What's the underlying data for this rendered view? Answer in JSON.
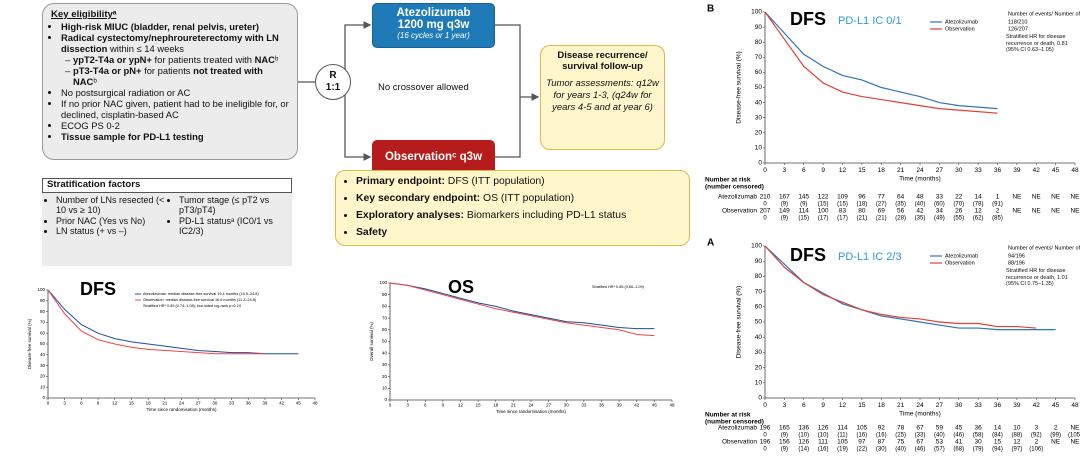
{
  "diagram": {
    "eligibility": {
      "title": "Key eligibilityᵃ",
      "items": [
        {
          "parts": [
            {
              "text": "High-risk MIUC (bladder, renal pelvis, ureter)",
              "bold": true
            }
          ]
        },
        {
          "parts": [
            {
              "text": "Radical cystectomy/nephroureterectomy with LN dissection",
              "bold": true
            },
            {
              "text": " within ≤ 14 weeks"
            }
          ]
        },
        {
          "sub": true,
          "parts": [
            {
              "text": "ypT2-T4a or ypN+",
              "bold": true
            },
            {
              "text": " for patients treated with "
            },
            {
              "text": "NAC",
              "bold": true
            },
            {
              "text": "ᵇ"
            }
          ]
        },
        {
          "sub": true,
          "parts": [
            {
              "text": "pT3-T4a or pN+",
              "bold": true
            },
            {
              "text": " for patients "
            },
            {
              "text": "not treated with NAC",
              "bold": true
            },
            {
              "text": "ᵇ"
            }
          ]
        },
        {
          "parts": [
            {
              "text": "No postsurgical radiation or AC"
            }
          ]
        },
        {
          "parts": [
            {
              "text": "If no prior NAC given, patient had to be ineligible for, or declined, cisplatin-based AC"
            }
          ]
        },
        {
          "parts": [
            {
              "text": "ECOG PS 0-2"
            }
          ]
        },
        {
          "parts": [
            {
              "text": "Tissue sample for PD-L1 testing",
              "bold": true
            }
          ]
        }
      ]
    },
    "stratification": {
      "title": "Stratification factors",
      "left": [
        "Number of LNs resected (< 10 vs ≥ 10)",
        "Prior NAC (Yes vs No)",
        "LN status (+ vs –)"
      ],
      "right": [
        "Tumor stage (≤ pT2 vs pT3/pT4)",
        "PD-L1 statusᵃ (IC0/1 vs IC2/3)"
      ]
    },
    "randomization": [
      "R",
      "1:1"
    ],
    "arm_a": {
      "name": "Atezolizumab",
      "dose": "1200 mg q3w",
      "note": "(16 cycles or 1 year)"
    },
    "arm_b": {
      "name": "Observationᶜ q3w"
    },
    "crossover": "No crossover allowed",
    "followup": {
      "title": "Disease recurrence/ survival follow-up",
      "body": "Tumor assessments: q12w for years 1-3, (q24w for years 4-5 and at year 6)"
    },
    "endpoints": [
      {
        "parts": [
          {
            "text": "Primary endpoint:",
            "bold": true
          },
          {
            "text": " DFS (ITT population)"
          }
        ]
      },
      {
        "parts": [
          {
            "text": "Key secondary endpoint:",
            "bold": true
          },
          {
            "text": " OS (ITT population)"
          }
        ]
      },
      {
        "parts": [
          {
            "text": "Exploratory analyses:",
            "bold": true
          },
          {
            "text": " Biomarkers including PD-L1 status"
          }
        ]
      },
      {
        "parts": [
          {
            "text": "Safety",
            "bold": true
          }
        ]
      }
    ]
  },
  "chart_data": [
    {
      "type": "line",
      "title": "DFS",
      "ylabel": "Disease-free survival (%)",
      "xlabel": "Time since randomisation (months)",
      "legend": [
        "Atezolizumab: median disease-free survival 19.4 months (15.9–24.8)",
        "Observation: median disease-free survival 16.6 months (11.2–24.8)",
        "Stratified HR* 0.89 (0.74–1.08); two-sided log-rank p=0.24"
      ],
      "x": [
        0,
        3,
        6,
        9,
        12,
        15,
        18,
        21,
        24,
        27,
        30,
        33,
        36,
        39,
        42,
        45
      ],
      "series": [
        {
          "name": "Atezolizumab",
          "color": "#1f4e9b",
          "values": [
            100,
            82,
            68,
            60,
            55,
            52,
            50,
            48,
            46,
            44,
            43,
            42,
            42,
            41,
            41,
            41
          ]
        },
        {
          "name": "Observation",
          "color": "#e8454a",
          "values": [
            100,
            78,
            62,
            54,
            50,
            47,
            45,
            44,
            43,
            42,
            41,
            41,
            41,
            41,
            null,
            null
          ]
        }
      ],
      "xlim": [
        0,
        48
      ],
      "ylim": [
        0,
        100
      ],
      "xticks": [
        0,
        3,
        6,
        9,
        12,
        15,
        18,
        21,
        24,
        27,
        30,
        33,
        36,
        39,
        42,
        45,
        48
      ],
      "yticks": [
        0,
        10,
        20,
        30,
        40,
        50,
        60,
        70,
        80,
        90,
        100
      ]
    },
    {
      "type": "line",
      "title": "OS",
      "ylabel": "Overall survival (%)",
      "xlabel": "Time since randomisation (months)",
      "legend": [
        "Stratified HR* 0.85 (0.66–1.09)"
      ],
      "x": [
        0,
        3,
        6,
        9,
        12,
        15,
        18,
        21,
        24,
        27,
        30,
        33,
        36,
        39,
        42,
        45
      ],
      "series": [
        {
          "name": "Atezolizumab",
          "color": "#1f4e9b",
          "values": [
            100,
            98,
            95,
            91,
            87,
            83,
            80,
            76,
            73,
            70,
            67,
            66,
            64,
            62,
            61,
            61
          ]
        },
        {
          "name": "Observation",
          "color": "#e8454a",
          "values": [
            100,
            98,
            94,
            90,
            86,
            82,
            78,
            75,
            72,
            69,
            66,
            64,
            62,
            60,
            56,
            55
          ]
        }
      ],
      "xlim": [
        0,
        48
      ],
      "ylim": [
        0,
        100
      ],
      "xticks": [
        0,
        3,
        6,
        9,
        12,
        15,
        18,
        21,
        24,
        27,
        30,
        33,
        36,
        39,
        42,
        45,
        48
      ],
      "yticks": [
        0,
        10,
        20,
        30,
        40,
        50,
        60,
        70,
        80,
        90,
        100
      ]
    },
    {
      "type": "line",
      "panel": "B",
      "title": "DFS",
      "subtitle": "PD-L1 IC 0/1",
      "ylabel": "Disease-free survival (%)",
      "xlabel": "Time (months)",
      "legend_title": "Number of events/ Number of patients",
      "legend_values": [
        "118/210",
        "126/207"
      ],
      "legend_note": "Stratified HR for disease recurrence or death, 0.81 (95% CI 0.63–1.05)",
      "x": [
        0,
        3,
        6,
        9,
        12,
        15,
        18,
        21,
        24,
        27,
        30,
        33,
        36
      ],
      "series": [
        {
          "name": "Atezolizumab",
          "color": "#2e75b6",
          "values": [
            100,
            86,
            72,
            64,
            58,
            55,
            50,
            47,
            44,
            40,
            38,
            37,
            36
          ]
        },
        {
          "name": "Observation",
          "color": "#e0403a",
          "values": [
            100,
            82,
            64,
            53,
            47,
            44,
            42,
            40,
            38,
            36,
            35,
            34,
            33
          ]
        }
      ],
      "xlim": [
        0,
        48
      ],
      "ylim": [
        0,
        100
      ],
      "xticks": [
        0,
        3,
        6,
        9,
        12,
        15,
        18,
        21,
        24,
        27,
        30,
        33,
        36,
        39,
        42,
        45,
        48
      ],
      "yticks": [
        0,
        10,
        20,
        30,
        40,
        50,
        60,
        70,
        80,
        90,
        100
      ],
      "risk_table": {
        "title": [
          "Number at risk",
          "(number censored)"
        ],
        "rows": [
          {
            "name": "Atezolizumab",
            "counts": [
              "210",
              "167",
              "145",
              "122",
              "109",
              "96",
              "77",
              "64",
              "48",
              "33",
              "22",
              "14",
              "1",
              "NE",
              "NE",
              "NE",
              "NE"
            ],
            "censored": [
              "0",
              "(9)",
              "(9)",
              "(15)",
              "(15)",
              "(18)",
              "(27)",
              "(35)",
              "(40)",
              "(60)",
              "(70)",
              "(78)",
              "(91)"
            ]
          },
          {
            "name": "Observation",
            "counts": [
              "207",
              "149",
              "114",
              "100",
              "83",
              "80",
              "69",
              "56",
              "42",
              "34",
              "26",
              "12",
              "2",
              "NE",
              "NE",
              "NE",
              "NE"
            ],
            "censored": [
              "0",
              "(9)",
              "(15)",
              "(17)",
              "(17)",
              "(21)",
              "(21)",
              "(28)",
              "(35)",
              "(49)",
              "(55)",
              "(62)",
              "(85)"
            ]
          }
        ]
      }
    },
    {
      "type": "line",
      "panel": "A",
      "title": "DFS",
      "subtitle": "PD-L1 IC 2/3",
      "ylabel": "Disease-free survival (%)",
      "xlabel": "Time (months)",
      "legend_title": "Number of events/ Number of patients",
      "legend_values": [
        "94/196",
        "88/196"
      ],
      "legend_note": "Stratified HR for disease recurrence or death, 1.01 (95% CI 0.75–1.35)",
      "x": [
        0,
        3,
        6,
        9,
        12,
        15,
        18,
        21,
        24,
        27,
        30,
        33,
        36,
        39,
        42,
        45
      ],
      "series": [
        {
          "name": "Atezolizumab",
          "color": "#2e75b6",
          "values": [
            100,
            88,
            76,
            69,
            62,
            58,
            54,
            52,
            50,
            48,
            46,
            46,
            45,
            45,
            45,
            45
          ]
        },
        {
          "name": "Observation",
          "color": "#e0403a",
          "values": [
            100,
            86,
            76,
            68,
            63,
            58,
            55,
            53,
            52,
            50,
            49,
            49,
            47,
            47,
            46,
            null
          ]
        }
      ],
      "xlim": [
        0,
        48
      ],
      "ylim": [
        0,
        100
      ],
      "xticks": [
        0,
        3,
        6,
        9,
        12,
        15,
        18,
        21,
        24,
        27,
        30,
        33,
        36,
        39,
        42,
        45,
        48
      ],
      "yticks": [
        0,
        10,
        20,
        30,
        40,
        50,
        60,
        70,
        80,
        90,
        100
      ],
      "risk_table": {
        "title": [
          "Number at risk",
          "(number censored)"
        ],
        "rows": [
          {
            "name": "Atezolizumab",
            "counts": [
              "196",
              "165",
              "136",
              "126",
              "114",
              "105",
              "92",
              "78",
              "67",
              "59",
              "45",
              "36",
              "14",
              "10",
              "3",
              "2",
              "NE"
            ],
            "censored": [
              "0",
              "(9)",
              "(10)",
              "(10)",
              "(11)",
              "(16)",
              "(16)",
              "(25)",
              "(33)",
              "(40)",
              "(46)",
              "(58)",
              "(84)",
              "(88)",
              "(92)",
              "(99)",
              "(105)"
            ]
          },
          {
            "name": "Observation",
            "counts": [
              "196",
              "156",
              "126",
              "111",
              "105",
              "97",
              "87",
              "75",
              "67",
              "53",
              "41",
              "30",
              "15",
              "12",
              "2",
              "NE",
              "NE"
            ],
            "censored": [
              "0",
              "(9)",
              "(14)",
              "(16)",
              "(19)",
              "(22)",
              "(30)",
              "(40)",
              "(46)",
              "(57)",
              "(68)",
              "(79)",
              "(94)",
              "(97)",
              "(106)"
            ]
          }
        ]
      }
    }
  ]
}
